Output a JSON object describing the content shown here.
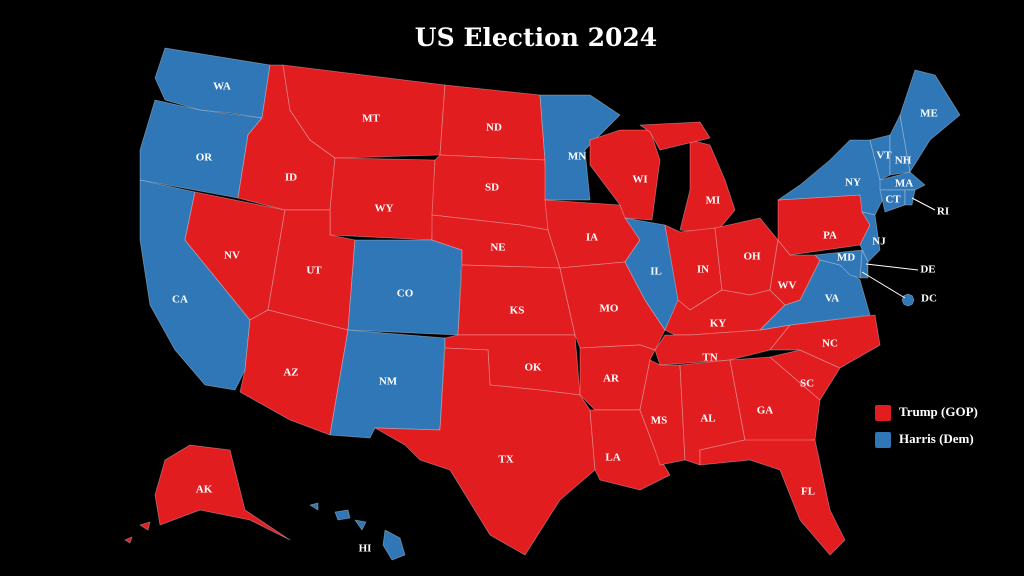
{
  "title": "US Election 2024",
  "legend": [
    {
      "name": "Trump (GOP)",
      "color": "#e21d20"
    },
    {
      "name": "Harris (Dem)",
      "color": "#2f77b6"
    }
  ],
  "states": [
    {
      "label": "WA",
      "winner": 1
    },
    {
      "label": "OR",
      "winner": 1
    },
    {
      "label": "CA",
      "winner": 1
    },
    {
      "label": "NV",
      "winner": 0
    },
    {
      "label": "ID",
      "winner": 0
    },
    {
      "label": "MT",
      "winner": 0
    },
    {
      "label": "WY",
      "winner": 0
    },
    {
      "label": "UT",
      "winner": 0
    },
    {
      "label": "AZ",
      "winner": 0
    },
    {
      "label": "CO",
      "winner": 1
    },
    {
      "label": "NM",
      "winner": 1
    },
    {
      "label": "ND",
      "winner": 0
    },
    {
      "label": "SD",
      "winner": 0
    },
    {
      "label": "NE",
      "winner": 0
    },
    {
      "label": "KS",
      "winner": 0
    },
    {
      "label": "OK",
      "winner": 0
    },
    {
      "label": "TX",
      "winner": 0
    },
    {
      "label": "MN",
      "winner": 1
    },
    {
      "label": "IA",
      "winner": 0
    },
    {
      "label": "MO",
      "winner": 0
    },
    {
      "label": "AR",
      "winner": 0
    },
    {
      "label": "LA",
      "winner": 0
    },
    {
      "label": "WI",
      "winner": 0
    },
    {
      "label": "IL",
      "winner": 1
    },
    {
      "label": "MI",
      "winner": 0
    },
    {
      "label": "IN",
      "winner": 0
    },
    {
      "label": "OH",
      "winner": 0
    },
    {
      "label": "KY",
      "winner": 0
    },
    {
      "label": "TN",
      "winner": 0
    },
    {
      "label": "MS",
      "winner": 0
    },
    {
      "label": "AL",
      "winner": 0
    },
    {
      "label": "GA",
      "winner": 0
    },
    {
      "label": "FL",
      "winner": 0
    },
    {
      "label": "SC",
      "winner": 0
    },
    {
      "label": "NC",
      "winner": 0
    },
    {
      "label": "VA",
      "winner": 1
    },
    {
      "label": "WV",
      "winner": 0
    },
    {
      "label": "PA",
      "winner": 0
    },
    {
      "label": "NY",
      "winner": 1
    },
    {
      "label": "VT",
      "winner": 1
    },
    {
      "label": "NH",
      "winner": 1
    },
    {
      "label": "ME",
      "winner": 1
    },
    {
      "label": "MA",
      "winner": 1
    },
    {
      "label": "CT",
      "winner": 1
    },
    {
      "label": "RI",
      "winner": 1
    },
    {
      "label": "NJ",
      "winner": 1
    },
    {
      "label": "DE",
      "winner": 1
    },
    {
      "label": "MD",
      "winner": 1
    },
    {
      "label": "DC",
      "winner": 1
    },
    {
      "label": "AK",
      "winner": 0
    },
    {
      "label": "HI",
      "winner": 1
    }
  ]
}
